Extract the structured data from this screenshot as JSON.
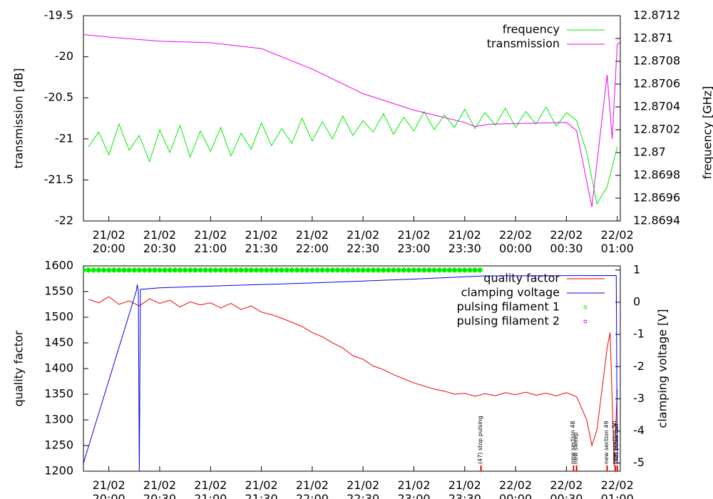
{
  "chart_data": [
    {
      "type": "line",
      "ylabel": "transmission [dB]",
      "y2label": "frequency [GHz]",
      "xlim": [
        19.75,
        25.03
      ],
      "xticks": [
        {
          "value": 20,
          "label": "21/02 20:00"
        },
        {
          "value": 20.5,
          "label": "21/02 20:30"
        },
        {
          "value": 21,
          "label": "21/02 21:00"
        },
        {
          "value": 21.5,
          "label": "21/02 21:30"
        },
        {
          "value": 22,
          "label": "21/02 22:00"
        },
        {
          "value": 22.5,
          "label": "21/02 22:30"
        },
        {
          "value": 23,
          "label": "21/02 23:00"
        },
        {
          "value": 23.5,
          "label": "21/02 23:30"
        },
        {
          "value": 24,
          "label": "22/02 00:00"
        },
        {
          "value": 24.5,
          "label": "22/02 00:30"
        },
        {
          "value": 25,
          "label": "22/02 01:00"
        }
      ],
      "ylim": [
        -22,
        -19.5
      ],
      "yticks": [
        -22,
        -21.5,
        -21,
        -20.5,
        -20,
        -19.5
      ],
      "y2lim": [
        12.8694,
        12.8712
      ],
      "y2ticks": [
        12.8694,
        12.8696,
        12.8698,
        12.87,
        12.8702,
        12.8704,
        12.8706,
        12.8708,
        12.871,
        12.8712
      ],
      "series": [
        {
          "name": "frequency",
          "color": "#00ee00",
          "axis": "y2",
          "marker": "line",
          "x": [
            19.8,
            19.9,
            20.0,
            20.1,
            20.2,
            20.3,
            20.4,
            20.5,
            20.6,
            20.7,
            20.8,
            20.9,
            21.0,
            21.1,
            21.2,
            21.3,
            21.4,
            21.5,
            21.6,
            21.7,
            21.8,
            21.9,
            22.0,
            22.1,
            22.2,
            22.3,
            22.4,
            22.5,
            22.6,
            22.7,
            22.8,
            22.9,
            23.0,
            23.1,
            23.2,
            23.3,
            23.4,
            23.5,
            23.6,
            23.7,
            23.8,
            23.9,
            24.0,
            24.1,
            24.2,
            24.3,
            24.4,
            24.5,
            24.6,
            24.7,
            24.8,
            24.9,
            25.0
          ],
          "values": [
            12.87005,
            12.87018,
            12.86998,
            12.87025,
            12.87002,
            12.87015,
            12.86992,
            12.8702,
            12.87,
            12.87024,
            12.86996,
            12.87019,
            12.87001,
            12.87022,
            12.86997,
            12.87017,
            12.87003,
            12.87026,
            12.87006,
            12.87021,
            12.87008,
            12.8703,
            12.8701,
            12.87027,
            12.87012,
            12.87032,
            12.87015,
            12.87028,
            12.87018,
            12.87034,
            12.87016,
            12.87031,
            12.87019,
            12.87036,
            12.8702,
            12.87033,
            12.87022,
            12.87038,
            12.87021,
            12.87035,
            12.87024,
            12.87039,
            12.87022,
            12.87036,
            12.87025,
            12.8704,
            12.87023,
            12.87035,
            12.87028,
            12.87,
            12.86955,
            12.8697,
            12.87005
          ]
        },
        {
          "name": "transmission",
          "color": "#ee00ee",
          "marker": "line",
          "x": [
            19.75,
            20.0,
            20.5,
            21.0,
            21.5,
            22.0,
            22.5,
            23.0,
            23.5,
            23.6,
            23.75,
            24.5,
            24.6,
            24.75,
            24.9,
            24.95,
            25.0,
            25.03
          ],
          "values": [
            -19.73,
            -19.76,
            -19.81,
            -19.83,
            -19.9,
            -20.15,
            -20.45,
            -20.65,
            -20.8,
            -20.85,
            -20.82,
            -20.8,
            -20.9,
            -21.83,
            -20.22,
            -21.0,
            -19.85,
            -19.82
          ]
        }
      ]
    },
    {
      "type": "line",
      "ylabel": "quality factor",
      "y2label": "clamping voltage [V]",
      "xlim": [
        19.75,
        25.03
      ],
      "xticks": [
        {
          "value": 20,
          "label": "21/02 20:00"
        },
        {
          "value": 20.5,
          "label": "21/02 20:30"
        },
        {
          "value": 21,
          "label": "21/02 21:00"
        },
        {
          "value": 21.5,
          "label": "21/02 21:30"
        },
        {
          "value": 22,
          "label": "21/02 22:00"
        },
        {
          "value": 22.5,
          "label": "21/02 22:30"
        },
        {
          "value": 23,
          "label": "21/02 23:00"
        },
        {
          "value": 23.5,
          "label": "21/02 23:30"
        },
        {
          "value": 24,
          "label": "22/02 00:00"
        },
        {
          "value": 24.5,
          "label": "22/02 00:30"
        },
        {
          "value": 25,
          "label": "22/02 01:00"
        }
      ],
      "ylim": [
        1200,
        1600
      ],
      "yticks": [
        1200,
        1250,
        1300,
        1350,
        1400,
        1450,
        1500,
        1550,
        1600
      ],
      "y2lim": [
        -5.25,
        1.13
      ],
      "y2ticks": [
        -5,
        -4,
        -3,
        -2,
        -1,
        0,
        1
      ],
      "series": [
        {
          "name": "quality factor",
          "color": "#ee0000",
          "marker": "line",
          "x": [
            19.8,
            19.9,
            20.0,
            20.1,
            20.2,
            20.3,
            20.4,
            20.5,
            20.6,
            20.7,
            20.8,
            20.9,
            21.0,
            21.1,
            21.2,
            21.3,
            21.4,
            21.5,
            21.6,
            21.7,
            21.8,
            21.9,
            22.0,
            22.1,
            22.2,
            22.3,
            22.4,
            22.5,
            22.6,
            22.7,
            22.8,
            22.9,
            23.0,
            23.1,
            23.2,
            23.3,
            23.4,
            23.5,
            23.6,
            23.7,
            23.8,
            23.9,
            24.0,
            24.1,
            24.2,
            24.3,
            24.4,
            24.5,
            24.6,
            24.7,
            24.75,
            24.8,
            24.9,
            24.93,
            24.97,
            25.0
          ],
          "values": [
            1535,
            1528,
            1540,
            1525,
            1532,
            1522,
            1536,
            1527,
            1533,
            1520,
            1530,
            1524,
            1528,
            1518,
            1527,
            1515,
            1522,
            1510,
            1505,
            1498,
            1490,
            1482,
            1470,
            1462,
            1450,
            1440,
            1425,
            1418,
            1405,
            1398,
            1388,
            1380,
            1372,
            1366,
            1360,
            1356,
            1350,
            1352,
            1346,
            1351,
            1347,
            1353,
            1349,
            1354,
            1348,
            1352,
            1347,
            1353,
            1345,
            1300,
            1250,
            1280,
            1440,
            1470,
            1210,
            1360
          ]
        },
        {
          "name": "clamping voltage",
          "color": "#0000ee",
          "axis": "y2",
          "marker": "line",
          "x": [
            19.75,
            20.27,
            20.28,
            20.29,
            20.3,
            20.31,
            20.5,
            21.0,
            22.0,
            23.0,
            23.7,
            24.99,
            25.0
          ],
          "values": [
            -5,
            0.35,
            0.55,
            0.35,
            -5.25,
            0.4,
            0.45,
            0.5,
            0.6,
            0.72,
            0.82,
            0.83,
            -5
          ]
        },
        {
          "name": "pulsing filament 1",
          "color": "#00ee00",
          "axis": "y2",
          "marker": "points",
          "x": [
            19.75,
            19.8,
            19.85,
            19.9,
            19.95,
            20.0,
            20.05,
            20.1,
            20.15,
            20.2,
            20.25,
            20.3,
            20.35,
            20.4,
            20.45,
            20.5,
            20.55,
            20.6,
            20.65,
            20.7,
            20.75,
            20.8,
            20.85,
            20.9,
            20.95,
            21.0,
            21.05,
            21.1,
            21.15,
            21.2,
            21.25,
            21.3,
            21.35,
            21.4,
            21.45,
            21.5,
            21.55,
            21.6,
            21.65,
            21.7,
            21.75,
            21.8,
            21.85,
            21.9,
            21.95,
            22.0,
            22.05,
            22.1,
            22.15,
            22.2,
            22.25,
            22.3,
            22.35,
            22.4,
            22.45,
            22.5,
            22.55,
            22.6,
            22.65,
            22.7,
            22.75,
            22.8,
            22.85,
            22.9,
            22.95,
            23.0,
            23.05,
            23.1,
            23.15,
            23.2,
            23.25,
            23.3,
            23.35,
            23.4,
            23.45,
            23.5,
            23.55,
            23.6,
            23.65
          ],
          "values": [
            1,
            1,
            1,
            1,
            1,
            1,
            1,
            1,
            1,
            1,
            1,
            1,
            1,
            1,
            1,
            1,
            1,
            1,
            1,
            1,
            1,
            1,
            1,
            1,
            1,
            1,
            1,
            1,
            1,
            1,
            1,
            1,
            1,
            1,
            1,
            1,
            1,
            1,
            1,
            1,
            1,
            1,
            1,
            1,
            1,
            1,
            1,
            1,
            1,
            1,
            1,
            1,
            1,
            1,
            1,
            1,
            1,
            1,
            1,
            1,
            1,
            1,
            1,
            1,
            1,
            1,
            1,
            1,
            1,
            1,
            1,
            1,
            1,
            1,
            1,
            1,
            1,
            1,
            1
          ]
        },
        {
          "name": "pulsing filament 2",
          "color": "#ee00ee",
          "axis": "y2",
          "marker": "points",
          "x": [],
          "values": []
        }
      ],
      "annotations": [
        {
          "x": 23.66,
          "text": "(47) stop pulsing"
        },
        {
          "x": 24.57,
          "text": "new section 48"
        },
        {
          "x": 24.6,
          "text": "new sweep"
        },
        {
          "x": 24.9,
          "text": "new section 49"
        },
        {
          "x": 24.98,
          "text": "new section 50"
        },
        {
          "x": 25.0,
          "text": "(48) pulse cell"
        }
      ]
    }
  ]
}
